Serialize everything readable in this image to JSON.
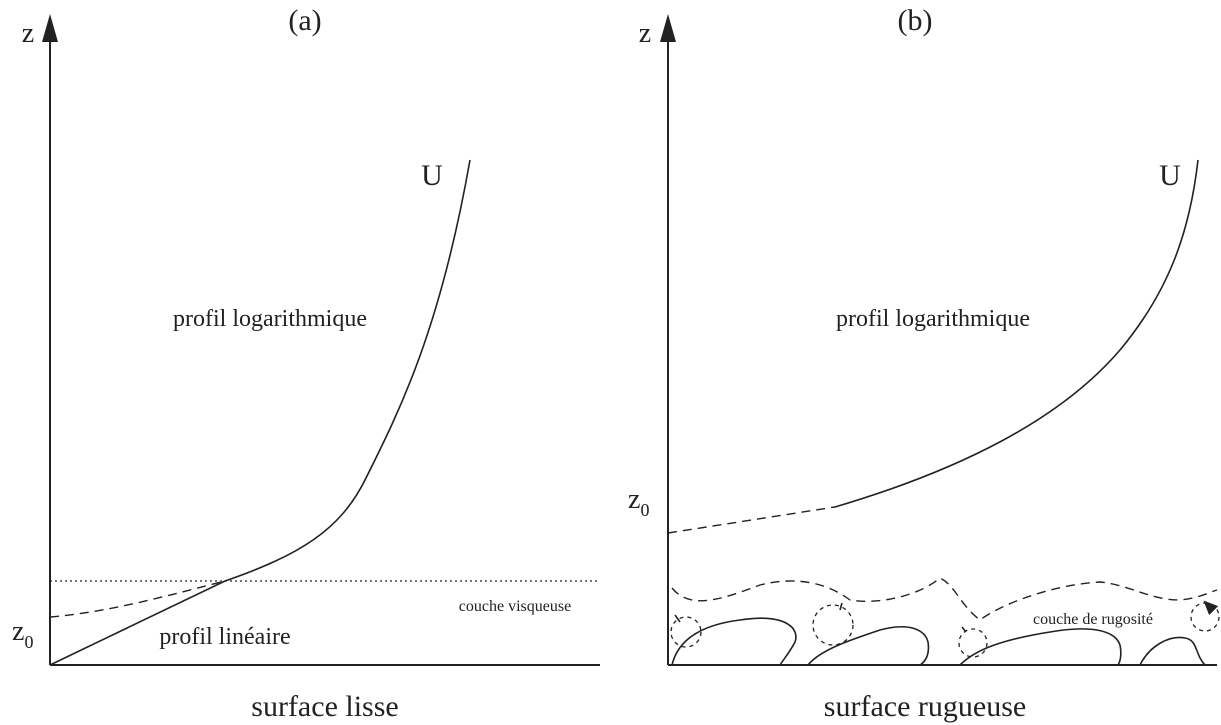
{
  "panel_a": {
    "label": "(a)",
    "axis": "z",
    "curve": "U",
    "upper_region": "profil logarithmique",
    "z0": {
      "base": "z",
      "sub": "0"
    },
    "layer": "couche visqueuse",
    "lower_region": "profil linéaire",
    "caption": "surface lisse"
  },
  "panel_b": {
    "label": "(b)",
    "axis": "z",
    "curve": "U",
    "upper_region": "profil logarithmique",
    "z0": {
      "base": "z",
      "sub": "0"
    },
    "layer": "couche de rugosité",
    "caption": "surface rugueuse"
  }
}
